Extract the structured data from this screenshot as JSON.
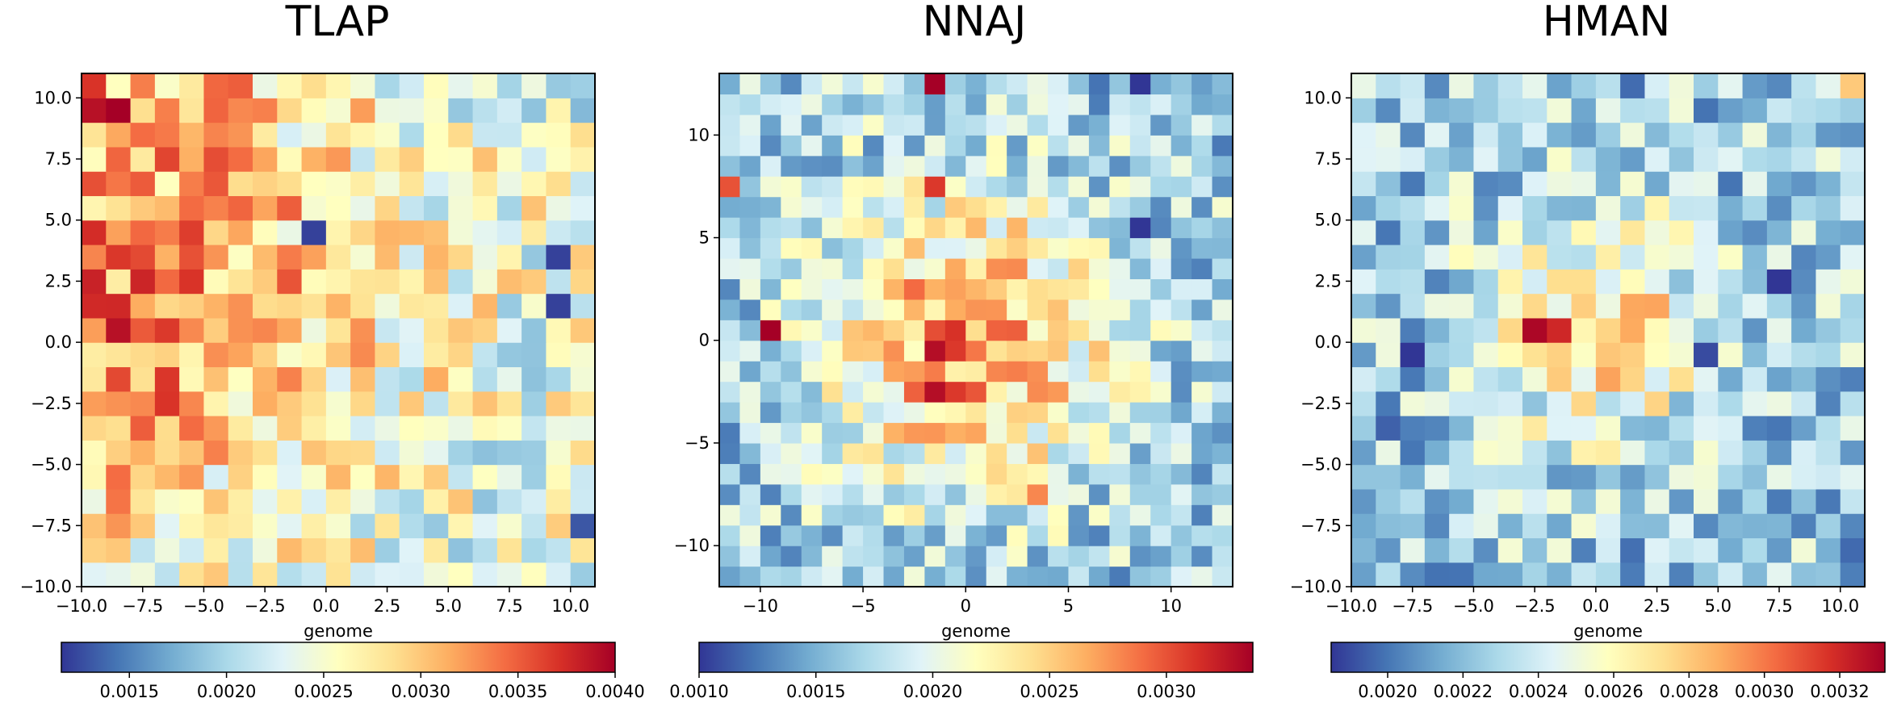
{
  "chart_data": [
    {
      "type": "heatmap",
      "title": "TLAP",
      "xlabel": "genome",
      "ylabel": "",
      "xlim": [
        -10.0,
        11.0
      ],
      "ylim": [
        -10.0,
        11.0
      ],
      "grid": false,
      "nx": 21,
      "ny": 21,
      "x_ticks": [
        -10.0,
        -7.5,
        -5.0,
        -2.5,
        0.0,
        2.5,
        5.0,
        7.5,
        10.0
      ],
      "x_tick_labels": [
        "−10.0",
        "−7.5",
        "−5.0",
        "−2.5",
        "0.0",
        "2.5",
        "5.0",
        "7.5",
        "10.0"
      ],
      "y_ticks": [
        -10.0,
        -7.5,
        -5.0,
        -2.5,
        0.0,
        2.5,
        5.0,
        7.5,
        10.0
      ],
      "y_tick_labels": [
        "−10.0",
        "−7.5",
        "−5.0",
        "−2.5",
        "0.0",
        "2.5",
        "5.0",
        "7.5",
        "10.0"
      ],
      "colorbar": {
        "cmap": "RdYlBu_r",
        "vmin": 0.00115,
        "vmax": 0.004,
        "ticks": [
          0.0015,
          0.002,
          0.0025,
          0.003,
          0.0035,
          0.004
        ],
        "tick_labels": [
          "0.0015",
          "0.0020",
          "0.0025",
          "0.0030",
          "0.0035",
          "0.0040"
        ]
      },
      "hotspots": [
        {
          "x": -9.5,
          "y": 10.5,
          "value": 0.0037
        },
        {
          "x": -9.5,
          "y": 9.5,
          "value": 0.0039
        },
        {
          "x": -8.5,
          "y": 9.5,
          "value": 0.004
        },
        {
          "x": -8.5,
          "y": 0.5,
          "value": 0.0039
        },
        {
          "x": -9.5,
          "y": 2.5,
          "value": 0.0038
        },
        {
          "x": -5.5,
          "y": 2.5,
          "value": 0.0037
        },
        {
          "x": -6.5,
          "y": -2.5,
          "value": 0.0037
        },
        {
          "x": -8.5,
          "y": -1.5,
          "value": 0.0036
        },
        {
          "x": -3.5,
          "y": 10.5,
          "value": 0.0035
        },
        {
          "x": -8.5,
          "y": -6.5,
          "value": 0.0034
        },
        {
          "x": -0.5,
          "y": 4.5,
          "value": 0.0012
        },
        {
          "x": 9.5,
          "y": 3.5,
          "value": 0.0012
        },
        {
          "x": 9.5,
          "y": 1.5,
          "value": 0.0012
        },
        {
          "x": 10.5,
          "y": -7.5,
          "value": 0.0013
        }
      ],
      "style": {
        "base": 0.00235,
        "center_x": -8.5,
        "center_y": 3.0,
        "sigma": 8.0,
        "amp": 0.0009,
        "noise": 0.0006,
        "seed": 11
      }
    },
    {
      "type": "heatmap",
      "title": "NNAJ",
      "xlabel": "genome",
      "ylabel": "",
      "xlim": [
        -12.0,
        13.0
      ],
      "ylim": [
        -12.0,
        13.0
      ],
      "grid": false,
      "nx": 25,
      "ny": 25,
      "x_ticks": [
        -10,
        -5,
        0,
        5,
        10
      ],
      "x_tick_labels": [
        "−10",
        "−5",
        "0",
        "5",
        "10"
      ],
      "y_ticks": [
        -10,
        -5,
        0,
        5,
        10
      ],
      "y_tick_labels": [
        "−10",
        "−5",
        "0",
        "5",
        "10"
      ],
      "colorbar": {
        "cmap": "RdYlBu_r",
        "vmin": 0.001,
        "vmax": 0.00337,
        "ticks": [
          0.001,
          0.0015,
          0.002,
          0.0025,
          0.003
        ],
        "tick_labels": [
          "0.0010",
          "0.0015",
          "0.0020",
          "0.0025",
          "0.0030"
        ]
      },
      "hotspots": [
        {
          "x": -1.5,
          "y": 12.5,
          "value": 0.0034
        },
        {
          "x": -11.5,
          "y": 7.5,
          "value": 0.003
        },
        {
          "x": -1.5,
          "y": 7.5,
          "value": 0.0031
        },
        {
          "x": -9.5,
          "y": 0.5,
          "value": 0.0034
        },
        {
          "x": -1.5,
          "y": -0.5,
          "value": 0.0033
        },
        {
          "x": -1.5,
          "y": -2.5,
          "value": 0.0033
        },
        {
          "x": -0.5,
          "y": -0.5,
          "value": 0.0031
        },
        {
          "x": -0.5,
          "y": -2.5,
          "value": 0.0031
        },
        {
          "x": 3.5,
          "y": -7.5,
          "value": 0.0028
        },
        {
          "x": 8.5,
          "y": 12.5,
          "value": 0.001
        },
        {
          "x": 8.5,
          "y": 5.5,
          "value": 0.001
        }
      ],
      "style": {
        "base": 0.00165,
        "center_x": 0.0,
        "center_y": 0.0,
        "sigma": 5.0,
        "amp": 0.0011,
        "noise": 0.00045,
        "seed": 23
      }
    },
    {
      "type": "heatmap",
      "title": "HMAN",
      "xlabel": "genome",
      "ylabel": "",
      "xlim": [
        -10.0,
        11.0
      ],
      "ylim": [
        -10.0,
        11.0
      ],
      "grid": false,
      "nx": 21,
      "ny": 21,
      "x_ticks": [
        -10.0,
        -7.5,
        -5.0,
        -2.5,
        0.0,
        2.5,
        5.0,
        7.5,
        10.0
      ],
      "x_tick_labels": [
        "−10.0",
        "−7.5",
        "−5.0",
        "−2.5",
        "0.0",
        "2.5",
        "5.0",
        "7.5",
        "10.0"
      ],
      "y_ticks": [
        -10.0,
        -7.5,
        -5.0,
        -2.5,
        0.0,
        2.5,
        5.0,
        7.5,
        10.0
      ],
      "y_tick_labels": [
        "−10.0",
        "−7.5",
        "−5.0",
        "−2.5",
        "0.0",
        "2.5",
        "5.0",
        "7.5",
        "10.0"
      ],
      "colorbar": {
        "cmap": "RdYlBu_r",
        "vmin": 0.00185,
        "vmax": 0.00332,
        "ticks": [
          0.002,
          0.0022,
          0.0024,
          0.0026,
          0.0028,
          0.003,
          0.0032
        ],
        "tick_labels": [
          "0.0020",
          "0.0022",
          "0.0024",
          "0.0026",
          "0.0028",
          "0.0030",
          "0.0032"
        ]
      },
      "hotspots": [
        {
          "x": -2.5,
          "y": 0.5,
          "value": 0.0033
        },
        {
          "x": -1.5,
          "y": 0.5,
          "value": 0.0032
        },
        {
          "x": 2.5,
          "y": 1.5,
          "value": 0.0029
        },
        {
          "x": 10.5,
          "y": 10.5,
          "value": 0.0028
        },
        {
          "x": -7.5,
          "y": -0.5,
          "value": 0.00185
        },
        {
          "x": 7.5,
          "y": 2.5,
          "value": 0.00185
        },
        {
          "x": 4.5,
          "y": -0.5,
          "value": 0.0019
        },
        {
          "x": -8.5,
          "y": -3.5,
          "value": 0.00195
        }
      ],
      "style": {
        "base": 0.00225,
        "center_x": 0.0,
        "center_y": 0.5,
        "sigma": 3.2,
        "amp": 0.0005,
        "noise": 0.00028,
        "seed": 37
      }
    }
  ]
}
